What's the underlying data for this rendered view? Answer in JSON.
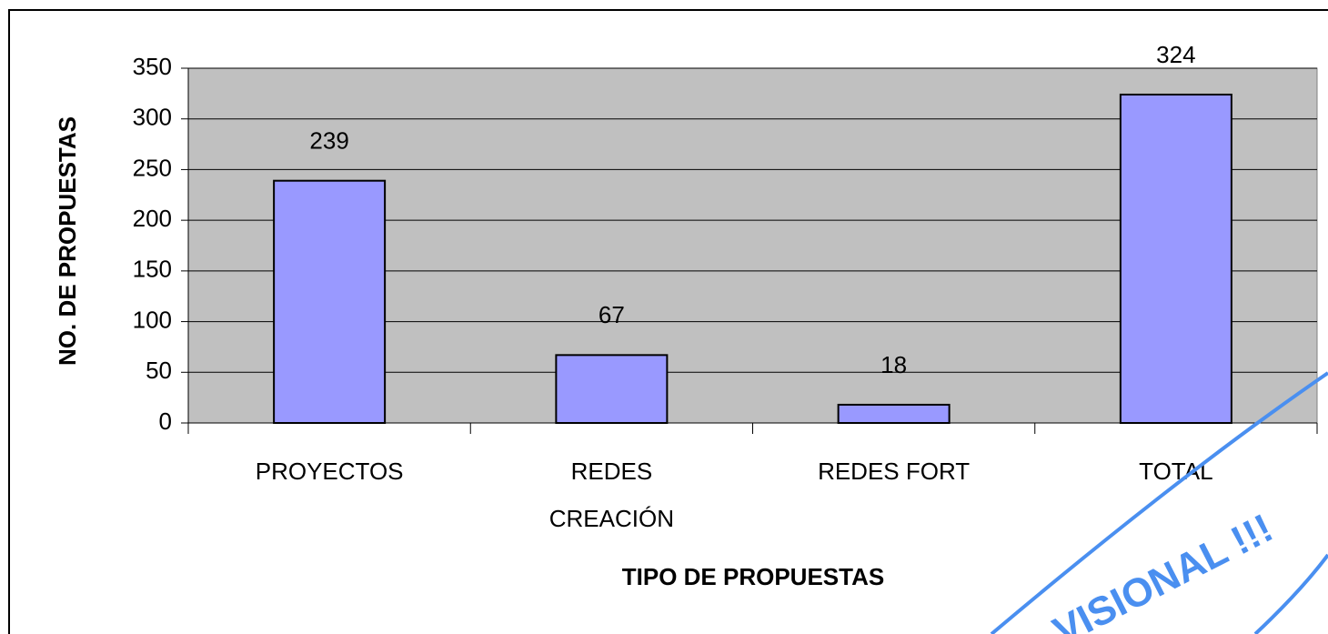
{
  "chart_data": {
    "type": "bar",
    "xlabel": "TIPO DE PROPUESTAS",
    "ylabel": "NO. DE PROPUESTAS",
    "categories": [
      "PROYECTOS",
      "REDES\nCREACIÓN",
      "REDES FORT",
      "TOTAL"
    ],
    "values": [
      239,
      67,
      18,
      324
    ],
    "color": "#9999ff",
    "ylim": [
      0,
      350
    ],
    "yticks": [
      0,
      50,
      100,
      150,
      200,
      250,
      300,
      350
    ],
    "grid": true,
    "annotations": [
      "VISIONAL !!!"
    ]
  }
}
